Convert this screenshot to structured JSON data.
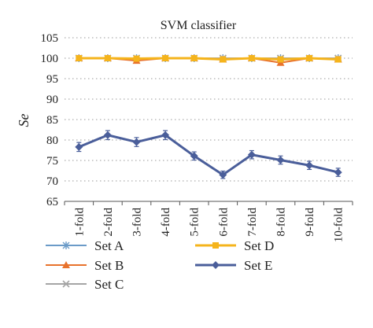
{
  "chart_data": {
    "type": "line",
    "title": "SVM classifier",
    "xlabel": "",
    "ylabel": "Se",
    "ylim": [
      65,
      105
    ],
    "yticks": [
      65,
      70,
      75,
      80,
      85,
      90,
      95,
      100,
      105
    ],
    "grid": "horizontal-dotted",
    "legend_position": "bottom",
    "categories": [
      "1-fold",
      "2-fold",
      "3-fold",
      "4-fold",
      "5-fold",
      "6-fold",
      "7-fold",
      "8-fold",
      "9-fold",
      "10-fold"
    ],
    "series": [
      {
        "name": "Set A",
        "color": "#6b9bc8",
        "marker": "star",
        "values": [
          100,
          100,
          100,
          100,
          100,
          100,
          100,
          100,
          100,
          100
        ],
        "error": [
          0.3,
          0.3,
          0.3,
          0.3,
          0.3,
          0.3,
          0.3,
          0.3,
          0.3,
          0.3
        ]
      },
      {
        "name": "Set B",
        "color": "#e8722c",
        "marker": "triangle",
        "values": [
          100,
          100,
          99.4,
          100,
          100,
          99.7,
          100,
          98.9,
          100,
          99.7
        ],
        "error": [
          0.3,
          0.3,
          0.4,
          0.3,
          0.3,
          0.4,
          0.3,
          0.5,
          0.3,
          0.4
        ]
      },
      {
        "name": "Set C",
        "color": "#a5a5a5",
        "marker": "x",
        "values": [
          100,
          100,
          100,
          100,
          100,
          100,
          100,
          100,
          100,
          100
        ],
        "error": [
          0.3,
          0.3,
          0.3,
          0.3,
          0.3,
          0.3,
          0.3,
          0.3,
          0.3,
          0.3
        ]
      },
      {
        "name": "Set D",
        "color": "#f5b41c",
        "marker": "square",
        "values": [
          100,
          100,
          99.9,
          100,
          100,
          99.7,
          100,
          99.7,
          100,
          99.7
        ],
        "error": [
          0.3,
          0.3,
          0.3,
          0.3,
          0.3,
          0.4,
          0.3,
          0.4,
          0.3,
          0.4
        ]
      },
      {
        "name": "Set E",
        "color": "#4a5e9a",
        "marker": "diamond",
        "values": [
          78.3,
          81.2,
          79.5,
          81.2,
          76.1,
          71.5,
          76.4,
          75.1,
          73.8,
          72.1
        ],
        "error": [
          1.1,
          1.1,
          1.1,
          1.1,
          1.0,
          0.9,
          1.0,
          1.0,
          1.0,
          1.0
        ]
      }
    ]
  }
}
